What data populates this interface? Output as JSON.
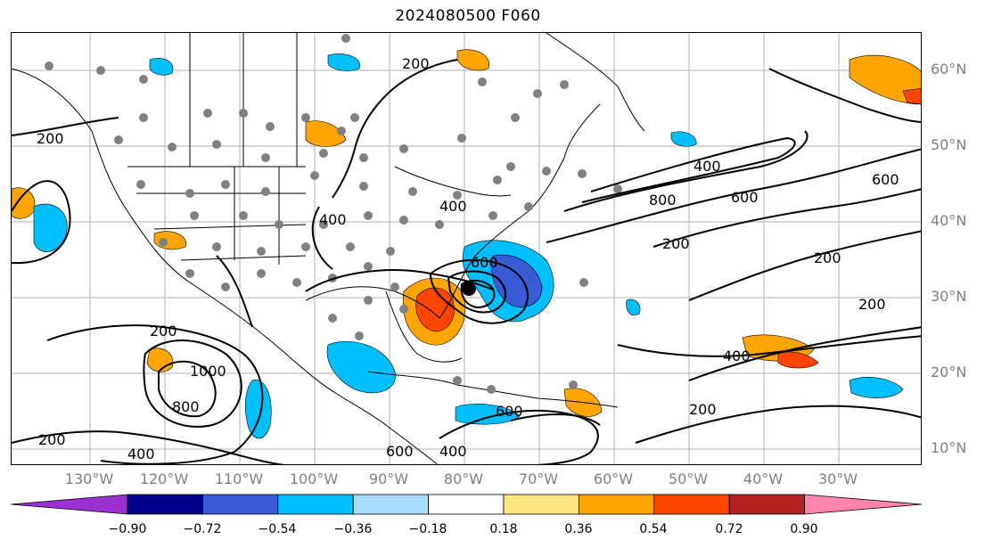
{
  "title": "2024080500 F060",
  "latitude_labels": [
    "60°N",
    "50°N",
    "40°N",
    "30°N",
    "20°N",
    "10°N"
  ],
  "longitude_labels": [
    "130°W",
    "120°W",
    "110°W",
    "100°W",
    "90°W",
    "80°W",
    "70°W",
    "60°W",
    "50°W",
    "40°W",
    "30°W"
  ],
  "contour_labels": [
    "200",
    "200",
    "200",
    "200",
    "200",
    "200",
    "200",
    "200",
    "400",
    "400",
    "400",
    "400",
    "600",
    "600",
    "600",
    "600",
    "800",
    "800",
    "1000",
    "600",
    "400",
    "400"
  ],
  "colorbar": {
    "ticks": [
      "−0.90",
      "−0.72",
      "−0.54",
      "−0.36",
      "−0.18",
      "0.18",
      "0.36",
      "0.54",
      "0.72",
      "0.90"
    ],
    "colors": [
      "#9b30d0",
      "#00008b",
      "#3a5bd6",
      "#00bfff",
      "#a8dcff",
      "#ffffff",
      "#ffe680",
      "#ffa500",
      "#ff4500",
      "#b22222",
      "#ff85b0"
    ]
  },
  "colors": {
    "contour": "#000000",
    "station": "#808080",
    "center_marker": "#000000"
  }
}
